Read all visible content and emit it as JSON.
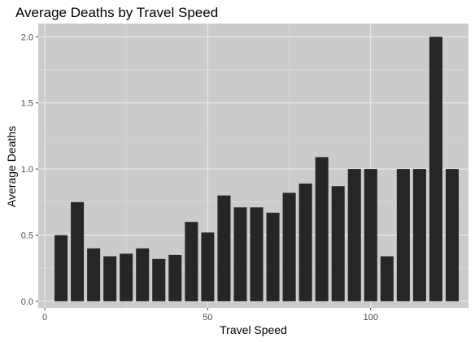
{
  "chart_data": {
    "type": "bar",
    "title": "Average Deaths by Travel Speed",
    "xlabel": "Travel Speed",
    "ylabel": "Average Deaths",
    "xlim": [
      -2,
      130
    ],
    "ylim": [
      -0.05,
      2.1
    ],
    "x_ticks": [
      0,
      50,
      100
    ],
    "x_tick_labels": [
      "0",
      "50",
      "100"
    ],
    "y_ticks": [
      0.0,
      0.5,
      1.0,
      1.5,
      2.0
    ],
    "y_tick_labels": [
      "0.0",
      "0.5",
      "1.0",
      "1.5",
      "2.0"
    ],
    "bar_width": 4,
    "x": [
      5,
      10,
      15,
      20,
      25,
      30,
      35,
      40,
      45,
      50,
      55,
      60,
      65,
      70,
      75,
      80,
      85,
      90,
      95,
      100,
      105,
      110,
      115,
      120,
      125
    ],
    "values": [
      0.5,
      0.75,
      0.4,
      0.34,
      0.36,
      0.4,
      0.32,
      0.35,
      0.6,
      0.52,
      0.8,
      0.71,
      0.71,
      0.67,
      0.82,
      0.89,
      1.09,
      0.87,
      1.0,
      1.0,
      0.34,
      1.0,
      1.0,
      2.0,
      1.0
    ],
    "grid": true,
    "colors": {
      "panel_background": "#cbcbcb",
      "grid_major": "#ebebeb",
      "grid_minor": "#dedede",
      "bar_fill": "#262626"
    }
  }
}
